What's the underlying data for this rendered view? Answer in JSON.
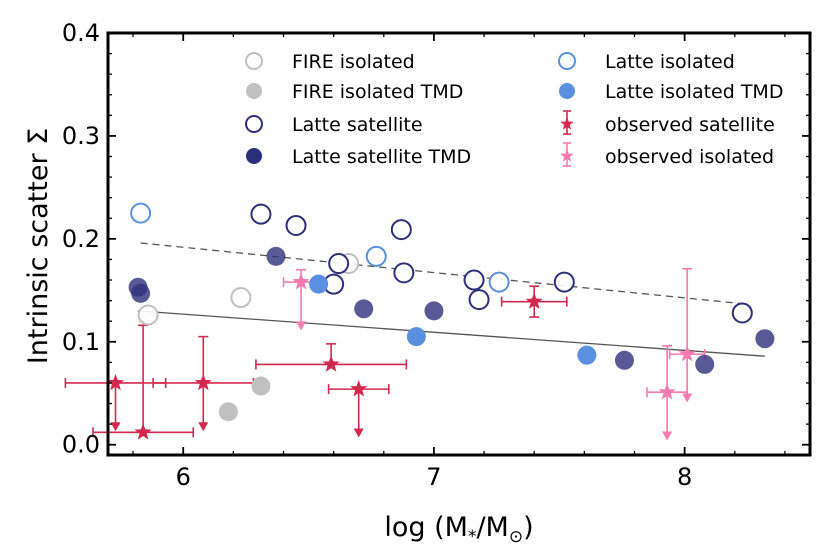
{
  "chart_data": {
    "type": "scatter",
    "title": "",
    "xlabel": "log (M",
    "xlabel_sub": "*",
    "xlabel_mid": "/M",
    "xlabel_sub2": "⊙",
    "xlabel_end": ")",
    "ylabel": "Intrinsic scatter Σ",
    "xlim": [
      5.7,
      8.5
    ],
    "ylim": [
      -0.01,
      0.4
    ],
    "xticks": [
      6,
      7,
      8
    ],
    "yticks": [
      0.0,
      0.1,
      0.2,
      0.3,
      0.4
    ],
    "xtick_labels": [
      "6",
      "7",
      "8"
    ],
    "ytick_labels": [
      "0.0",
      "0.1",
      "0.2",
      "0.3",
      "0.4"
    ],
    "colors": {
      "fire": "#c0c0c0",
      "latte_iso": "#5b8fe0",
      "latte_sat": "#2e2f7a",
      "obs_sat": "#d4284f",
      "obs_iso": "#f47ab0",
      "fit_line": "#555555"
    },
    "legend": [
      {
        "label": "FIRE isolated",
        "marker": "open-circle",
        "color": "#c0c0c0"
      },
      {
        "label": "FIRE isolated TMD",
        "marker": "filled-circle",
        "color": "#c0c0c0"
      },
      {
        "label": "Latte satellite",
        "marker": "open-circle",
        "color": "#2e2f7a"
      },
      {
        "label": "Latte satellite TMD",
        "marker": "filled-circle",
        "color": "#2e2f7a"
      },
      {
        "label": "Latte isolated",
        "marker": "open-circle",
        "color": "#5b8fe0"
      },
      {
        "label": "Latte isolated TMD",
        "marker": "filled-circle",
        "color": "#5b8fe0"
      },
      {
        "label": "observed satellite",
        "marker": "star-error",
        "color": "#d4284f"
      },
      {
        "label": "observed isolated",
        "marker": "star-error",
        "color": "#f47ab0"
      }
    ],
    "series": [
      {
        "name": "FIRE isolated",
        "marker": "open",
        "color": "#c0c0c0",
        "points": [
          [
            5.86,
            0.126
          ],
          [
            6.23,
            0.143
          ],
          [
            6.66,
            0.176
          ]
        ]
      },
      {
        "name": "FIRE isolated TMD",
        "marker": "filled",
        "color": "#c0c0c0",
        "points": [
          [
            6.18,
            0.032
          ],
          [
            6.31,
            0.057
          ]
        ]
      },
      {
        "name": "Latte satellite",
        "marker": "open",
        "color": "#2e2f7a",
        "points": [
          [
            6.31,
            0.224
          ],
          [
            6.45,
            0.213
          ],
          [
            6.62,
            0.176
          ],
          [
            6.6,
            0.156
          ],
          [
            6.87,
            0.209
          ],
          [
            6.88,
            0.167
          ],
          [
            7.16,
            0.16
          ],
          [
            7.18,
            0.141
          ],
          [
            7.52,
            0.158
          ],
          [
            8.23,
            0.128
          ]
        ]
      },
      {
        "name": "Latte satellite TMD",
        "marker": "filled",
        "color": "#2e2f7a",
        "points": [
          [
            5.82,
            0.153
          ],
          [
            5.83,
            0.147
          ],
          [
            6.37,
            0.183
          ],
          [
            6.72,
            0.132
          ],
          [
            7.0,
            0.13
          ],
          [
            7.76,
            0.082
          ],
          [
            8.08,
            0.078
          ],
          [
            8.32,
            0.103
          ]
        ]
      },
      {
        "name": "Latte isolated",
        "marker": "open",
        "color": "#5b8fe0",
        "points": [
          [
            5.83,
            0.225
          ],
          [
            6.77,
            0.183
          ],
          [
            7.26,
            0.158
          ]
        ]
      },
      {
        "name": "Latte isolated TMD",
        "marker": "filled",
        "color": "#5b8fe0",
        "points": [
          [
            6.54,
            0.156
          ],
          [
            6.93,
            0.105
          ],
          [
            7.61,
            0.087
          ]
        ]
      }
    ],
    "observed": [
      {
        "name": "observed satellite",
        "color": "#d4284f",
        "points": [
          {
            "x": 5.73,
            "y": 0.06,
            "xerr": [
              0.2,
              0.2
            ],
            "yerr_lo": 0.045,
            "yerr_hi": 0.0,
            "arrow": "down"
          },
          {
            "x": 5.84,
            "y": 0.012,
            "xerr": [
              0.2,
              0.2
            ],
            "yerr_lo": 0.0,
            "yerr_hi": 0.104,
            "arrow": "none"
          },
          {
            "x": 6.08,
            "y": 0.06,
            "xerr": [
              0.2,
              0.2
            ],
            "yerr_lo": 0.045,
            "yerr_hi": 0.045,
            "arrow": "down"
          },
          {
            "x": 6.59,
            "y": 0.078,
            "xerr": [
              0.3,
              0.3
            ],
            "yerr_lo": 0.0,
            "yerr_hi": 0.02,
            "arrow": "none"
          },
          {
            "x": 6.7,
            "y": 0.054,
            "xerr": [
              0.12,
              0.12
            ],
            "yerr_lo": 0.045,
            "yerr_hi": 0.0,
            "arrow": "down"
          },
          {
            "x": 7.4,
            "y": 0.139,
            "xerr": [
              0.13,
              0.13
            ],
            "yerr_lo": 0.015,
            "yerr_hi": 0.015,
            "arrow": "none"
          }
        ]
      },
      {
        "name": "observed isolated",
        "color": "#f47ab0",
        "points": [
          {
            "x": 6.47,
            "y": 0.158,
            "xerr": [
              0.07,
              0.07
            ],
            "yerr_lo": 0.045,
            "yerr_hi": 0.012,
            "arrow": "down"
          },
          {
            "x": 7.93,
            "y": 0.051,
            "xerr": [
              0.08,
              0.08
            ],
            "yerr_lo": 0.045,
            "yerr_hi": 0.045,
            "arrow": "down"
          },
          {
            "x": 8.01,
            "y": 0.088,
            "xerr": [
              0.07,
              0.07
            ],
            "yerr_lo": 0.045,
            "yerr_hi": 0.083,
            "arrow": "down"
          }
        ]
      }
    ],
    "fit_lines": [
      {
        "name": "solid fit",
        "style": "solid",
        "x": [
          5.82,
          8.32
        ],
        "y": [
          0.13,
          0.086
        ]
      },
      {
        "name": "dashed fit",
        "style": "dashed",
        "x": [
          5.83,
          8.23
        ],
        "y": [
          0.196,
          0.137
        ]
      }
    ]
  }
}
